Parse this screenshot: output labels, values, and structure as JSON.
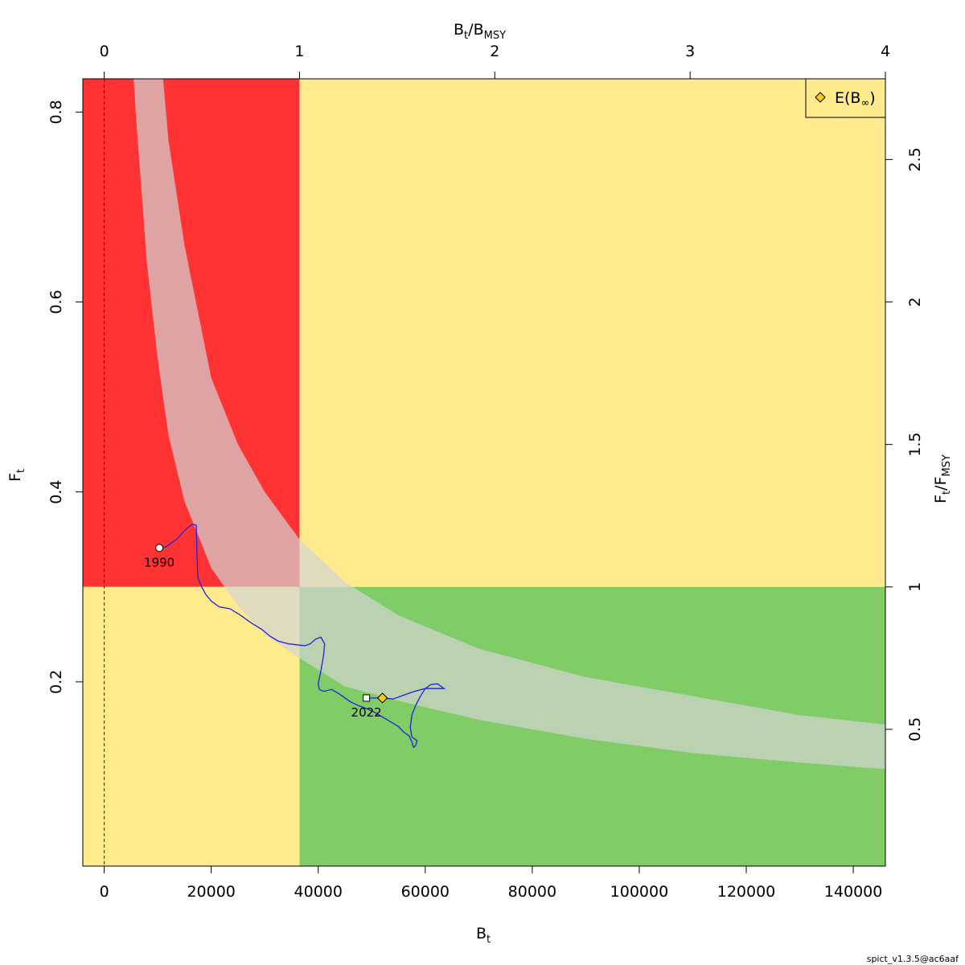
{
  "chart_data": {
    "type": "line",
    "title": "",
    "xlabel": "B",
    "xlabel_sub": "t",
    "ylabel": "F",
    "ylabel_sub": "t",
    "top_axis_label": {
      "num": "B",
      "num_sub": "t",
      "den": "B",
      "den_sub": "MSY"
    },
    "right_axis_label": {
      "num": "F",
      "num_sub": "t",
      "den": "F",
      "den_sub": "MSY"
    },
    "xlim": [
      -4000,
      146000
    ],
    "ylim": [
      0.006,
      0.835
    ],
    "x_ticks": [
      "0",
      "20000",
      "40000",
      "60000",
      "80000",
      "100000",
      "120000",
      "140000"
    ],
    "y_ticks": [
      "0.2",
      "0.4",
      "0.6",
      "0.8"
    ],
    "top_ticks": [
      "0",
      "1",
      "2",
      "3",
      "4"
    ],
    "right_ticks": [
      "0.5",
      "1",
      "1.5",
      "2",
      "2.5"
    ],
    "Bmsy": 36500,
    "Fmsy": 0.3,
    "regions": {
      "overfished_overfishing_color": "#ff3333",
      "caution_color": "#ffea8c",
      "healthy_color": "#80cc66",
      "msy_band_color": "#d3d3d3"
    },
    "msy_band": [
      {
        "B": 5500,
        "lower": 0.835,
        "upper": 0.835
      },
      {
        "B": 6000,
        "lower": 0.79,
        "upper": 0.835
      },
      {
        "B": 8000,
        "lower": 0.64,
        "upper": 0.835
      },
      {
        "B": 10000,
        "lower": 0.54,
        "upper": 0.835
      },
      {
        "B": 11000,
        "lower": 0.5,
        "upper": 0.835
      },
      {
        "B": 12000,
        "lower": 0.46,
        "upper": 0.77
      },
      {
        "B": 15000,
        "lower": 0.39,
        "upper": 0.66
      },
      {
        "B": 20000,
        "lower": 0.32,
        "upper": 0.52
      },
      {
        "B": 25000,
        "lower": 0.28,
        "upper": 0.45
      },
      {
        "B": 30000,
        "lower": 0.25,
        "upper": 0.4
      },
      {
        "B": 36500,
        "lower": 0.225,
        "upper": 0.35
      },
      {
        "B": 45000,
        "lower": 0.195,
        "upper": 0.305
      },
      {
        "B": 55000,
        "lower": 0.18,
        "upper": 0.27
      },
      {
        "B": 70000,
        "lower": 0.16,
        "upper": 0.235
      },
      {
        "B": 90000,
        "lower": 0.14,
        "upper": 0.205
      },
      {
        "B": 110000,
        "lower": 0.125,
        "upper": 0.185
      },
      {
        "B": 130000,
        "lower": 0.115,
        "upper": 0.165
      },
      {
        "B": 146000,
        "lower": 0.108,
        "upper": 0.155
      }
    ],
    "series": [
      {
        "color": "#2222dd",
        "x": [
          10300,
          11500,
          13500,
          15500,
          16500,
          17200,
          17300,
          17500,
          18200,
          19000,
          20000,
          21500,
          23500,
          25500,
          27500,
          29500,
          31000,
          32500,
          34500,
          36000,
          37500,
          38500,
          39500,
          40500,
          41200,
          41000,
          40500,
          40000,
          40200,
          41000,
          42500,
          44000,
          46000,
          47500,
          49000,
          50500,
          52000,
          53500,
          55000,
          56000,
          57000,
          57500,
          57800,
          58200,
          58500,
          58000,
          57500,
          57200,
          57500,
          58200,
          59000,
          60000,
          61000,
          62300,
          63500,
          62000,
          60000,
          58000,
          56000,
          54000,
          52000,
          49000
        ],
        "y": [
          0.341,
          0.342,
          0.35,
          0.362,
          0.366,
          0.365,
          0.34,
          0.31,
          0.3,
          0.292,
          0.285,
          0.279,
          0.277,
          0.27,
          0.262,
          0.255,
          0.248,
          0.243,
          0.24,
          0.239,
          0.238,
          0.24,
          0.245,
          0.247,
          0.24,
          0.228,
          0.212,
          0.198,
          0.192,
          0.19,
          0.192,
          0.187,
          0.179,
          0.175,
          0.172,
          0.168,
          0.163,
          0.158,
          0.153,
          0.147,
          0.143,
          0.137,
          0.131,
          0.133,
          0.138,
          0.14,
          0.142,
          0.152,
          0.165,
          0.175,
          0.184,
          0.193,
          0.197,
          0.198,
          0.193,
          0.193,
          0.193,
          0.19,
          0.186,
          0.182,
          0.183,
          0.183
        ]
      }
    ],
    "points": [
      {
        "label": "1990",
        "x": 10300,
        "y": 0.341,
        "shape": "circle"
      },
      {
        "label": "2022",
        "x": 49000,
        "y": 0.183,
        "shape": "square"
      }
    ],
    "equilibrium": {
      "x": 52000,
      "y": 0.183,
      "color": "#ffcc00"
    },
    "legend": {
      "position": "top-right",
      "entry": "E(B",
      "entry_sub": "∞",
      "entry_close": ")"
    },
    "footer": "spict_v1.3.5@ac6aaf"
  }
}
